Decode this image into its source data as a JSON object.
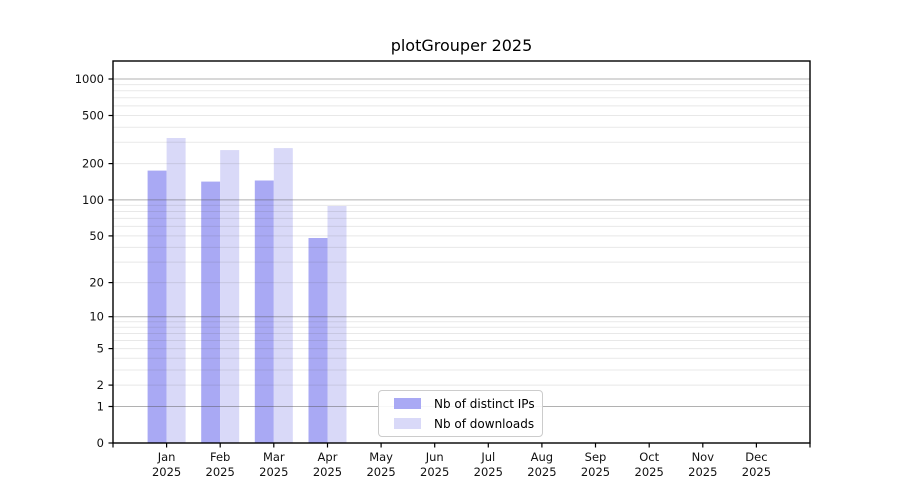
{
  "figure": {
    "title": "plotGrouper 2025"
  },
  "chart_data": {
    "type": "bar",
    "title": "plotGrouper 2025",
    "categories": [
      "Jan",
      "Feb",
      "Mar",
      "Apr",
      "May",
      "Jun",
      "Jul",
      "Aug",
      "Sep",
      "Oct",
      "Nov",
      "Dec"
    ],
    "category_year": "2025",
    "series": [
      {
        "name": "Nb of distinct IPs",
        "color": "#a9a9f4",
        "values": [
          175,
          142,
          145,
          48,
          null,
          null,
          null,
          null,
          null,
          null,
          null,
          null
        ]
      },
      {
        "name": "Nb of downloads",
        "color": "#d9d9f8",
        "values": [
          326,
          259,
          269,
          89,
          null,
          null,
          null,
          null,
          null,
          null,
          null,
          null
        ]
      }
    ],
    "y_scale": "log1p",
    "y_ticks": [
      0,
      1,
      2,
      5,
      10,
      20,
      50,
      100,
      200,
      500,
      1000
    ],
    "y_major_gridlines": [
      1,
      10,
      100,
      1000
    ],
    "ylim": [
      0,
      1410
    ],
    "grid": "horizontal major+minor",
    "legend": {
      "position": "inside-bottom-center",
      "entries": [
        "Nb of distinct IPs",
        "Nb of downloads"
      ]
    },
    "colors": {
      "axis": "#000000",
      "tick_text": "#111111",
      "major_grid": "#b0b0b0",
      "minor_grid": "#e8e8e8",
      "legend_border": "#cccccc"
    }
  }
}
